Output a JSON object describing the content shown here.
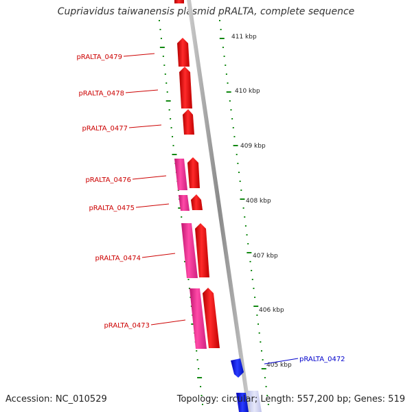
{
  "title": "Cupriavidus taiwanensis plasmid pRALTA, complete sequence",
  "accession_text": "Accession: NC_010529",
  "summary_text": "Topology: circular; Length: 557,200 bp; Genes: 519",
  "colors": {
    "forward": "#ee0000",
    "reverse": "#ee2288",
    "other_strand": "#1122ee",
    "label_red": "#cc0000",
    "label_blue": "#0000cc",
    "tick": "#118811",
    "backbone": "#999999"
  },
  "scale_labels": [
    "411 kbp",
    "410 kbp",
    "409 kbp",
    "408 kbp",
    "407 kbp",
    "406 kbp",
    "405 kbp"
  ],
  "genes": [
    {
      "name": "pRALTA_0479",
      "color": "red"
    },
    {
      "name": "pRALTA_0478",
      "color": "red"
    },
    {
      "name": "pRALTA_0477",
      "color": "red"
    },
    {
      "name": "pRALTA_0476",
      "color": "red"
    },
    {
      "name": "pRALTA_0475",
      "color": "red"
    },
    {
      "name": "pRALTA_0474",
      "color": "red"
    },
    {
      "name": "pRALTA_0473",
      "color": "red"
    },
    {
      "name": "pRALTA_0472",
      "color": "blue"
    }
  ]
}
